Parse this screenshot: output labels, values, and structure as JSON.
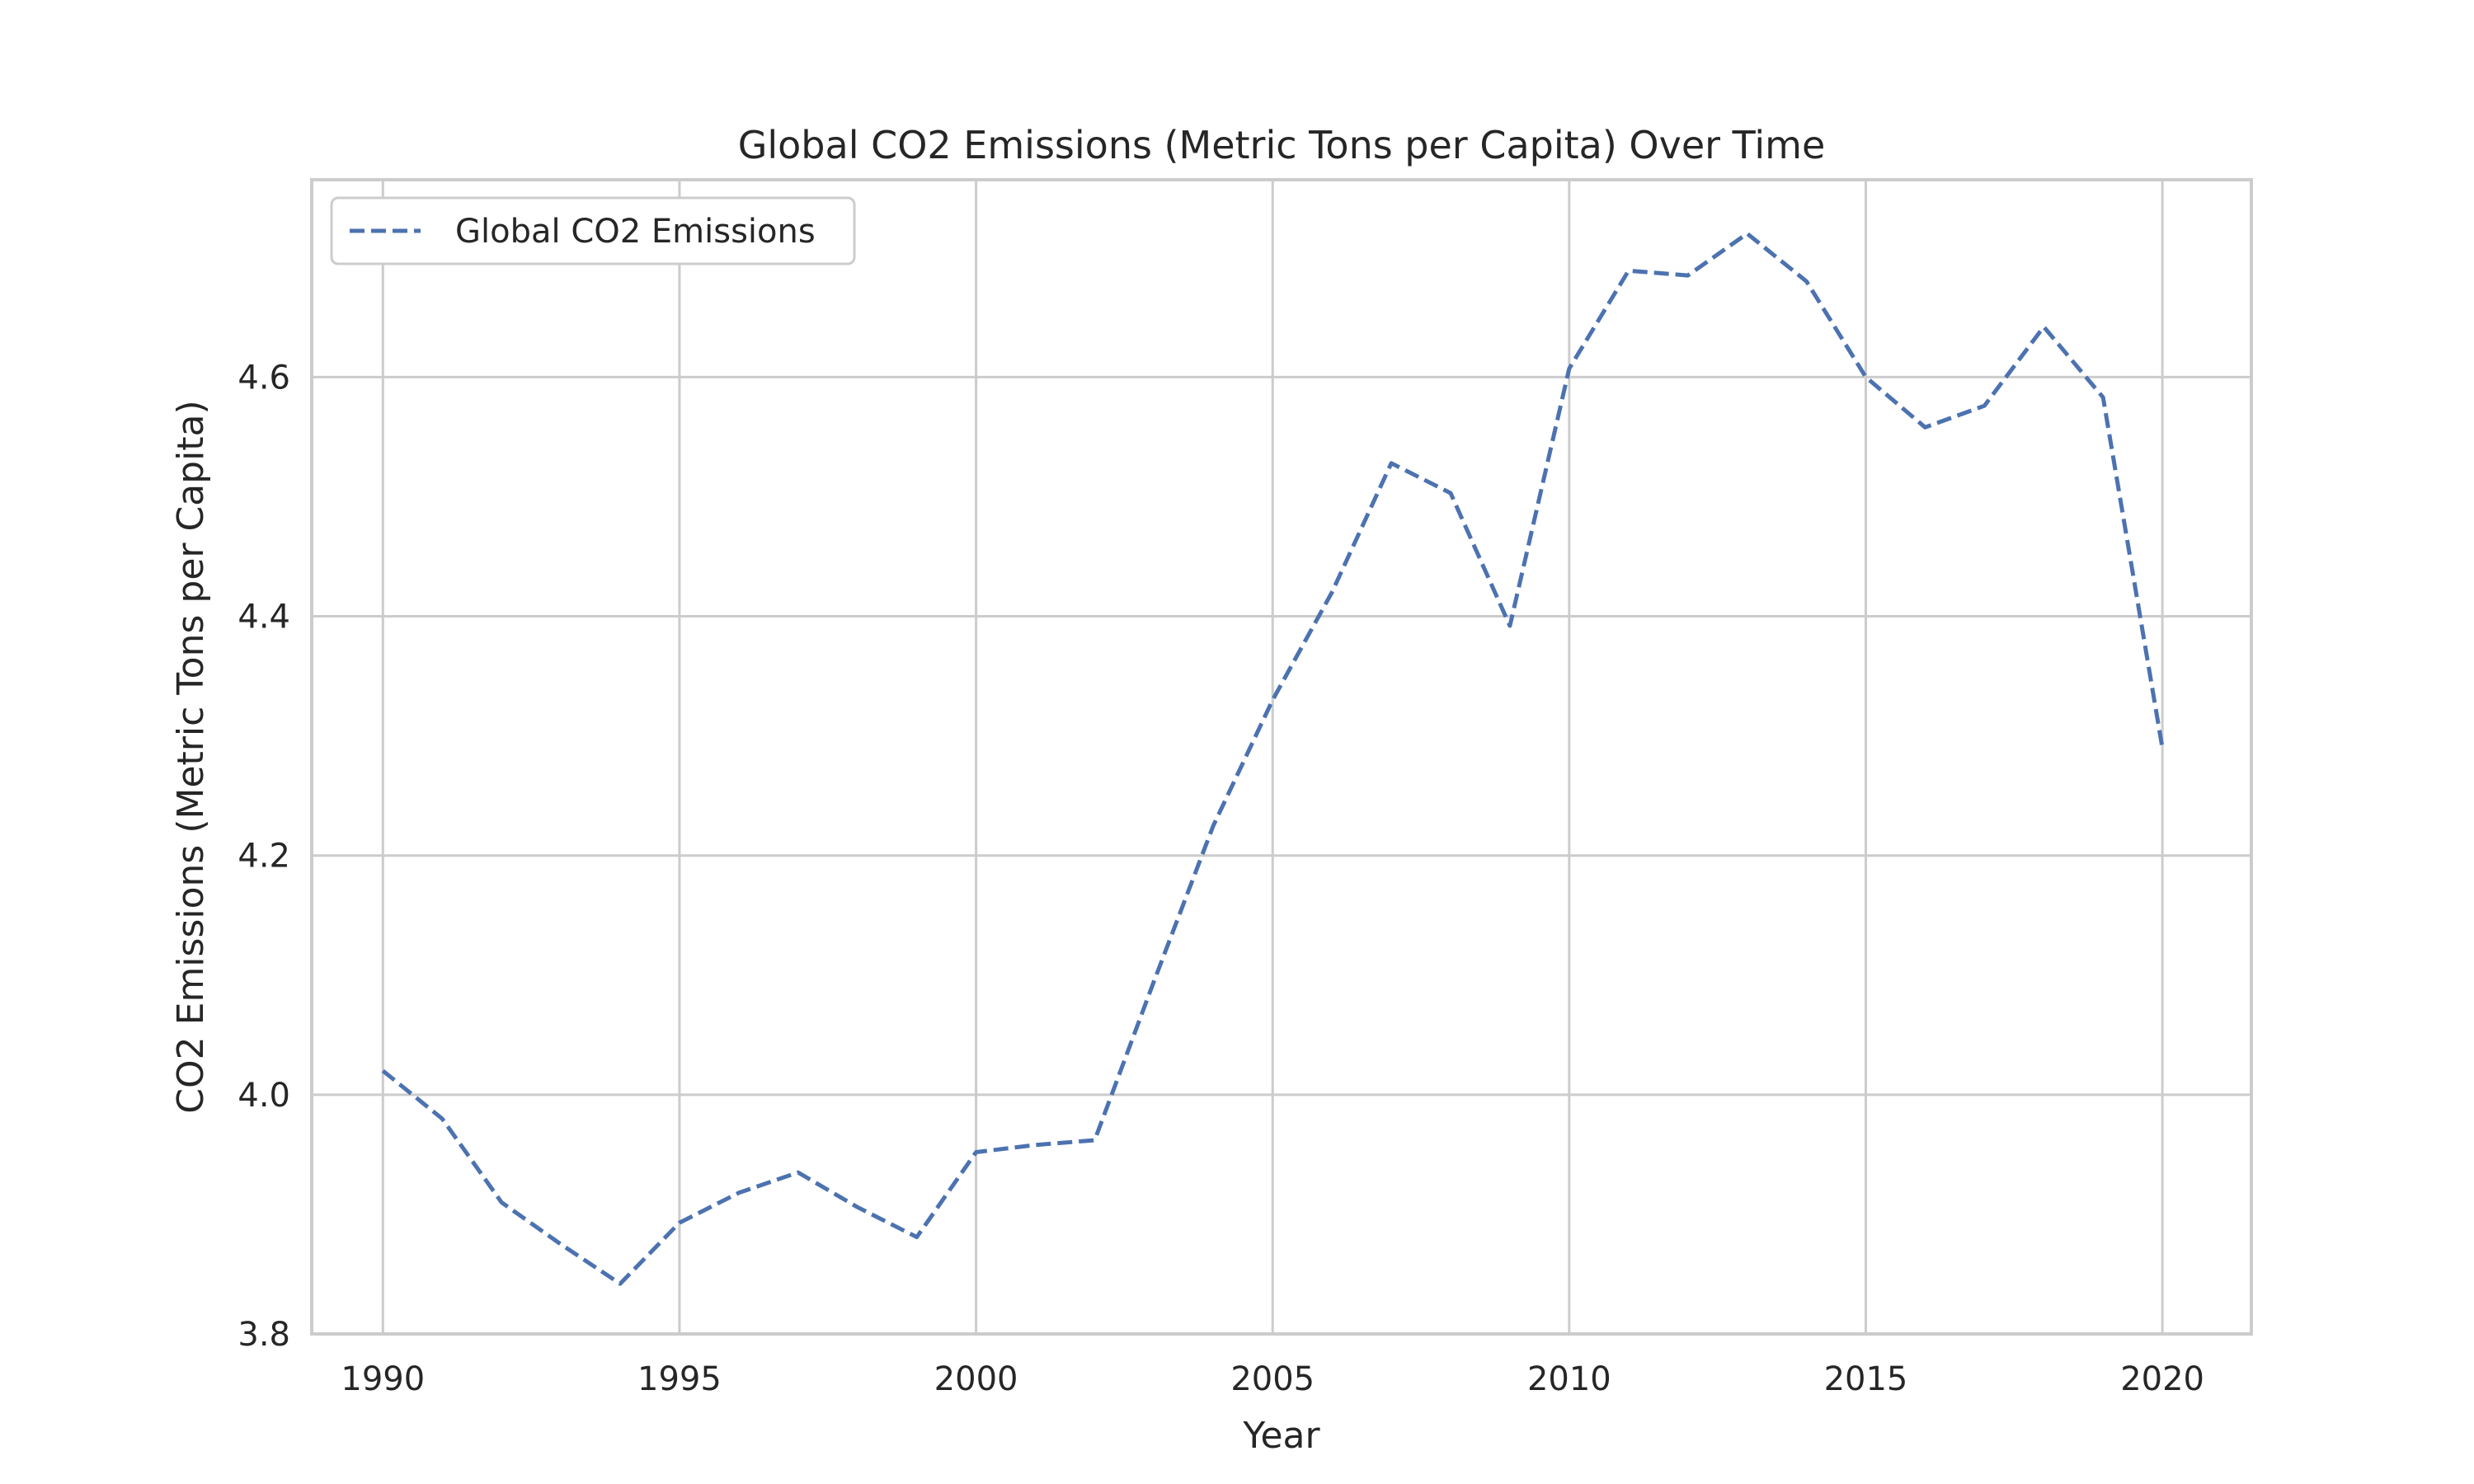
{
  "chart_data": {
    "type": "line",
    "title": "Global CO2 Emissions (Metric Tons per Capita) Over Time",
    "xlabel": "Year",
    "ylabel": "CO2 Emissions (Metric Tons per Capita)",
    "xlim": [
      1988.8,
      2021.5
    ],
    "ylim": [
      3.8,
      4.765
    ],
    "xticks": [
      1990,
      1995,
      2000,
      2005,
      2010,
      2015,
      2020
    ],
    "yticks": [
      3.8,
      4.0,
      4.2,
      4.4,
      4.6
    ],
    "ytick_labels": [
      "3.8",
      "4.0",
      "4.2",
      "4.4",
      "4.6"
    ],
    "grid": true,
    "legend": {
      "position": "top-left",
      "entries": [
        "Global CO2 Emissions"
      ]
    },
    "series": [
      {
        "name": "Global CO2 Emissions",
        "color": "#4c72b0",
        "style": "dashed",
        "x": [
          1990,
          1991,
          1992,
          1993,
          1994,
          1995,
          1996,
          1997,
          1998,
          1999,
          2000,
          2001,
          2002,
          2003,
          2004,
          2005,
          2006,
          2007,
          2008,
          2009,
          2010,
          2011,
          2012,
          2013,
          2014,
          2015,
          2016,
          2017,
          2018,
          2019,
          2020
        ],
        "y": [
          4.02,
          3.98,
          3.91,
          3.875,
          3.842,
          3.893,
          3.918,
          3.935,
          3.906,
          3.881,
          3.952,
          3.958,
          3.962,
          4.095,
          4.225,
          4.33,
          4.42,
          4.528,
          4.503,
          4.392,
          4.607,
          4.689,
          4.685,
          4.72,
          4.68,
          4.6,
          4.558,
          4.576,
          4.642,
          4.583,
          4.29
        ]
      }
    ]
  }
}
